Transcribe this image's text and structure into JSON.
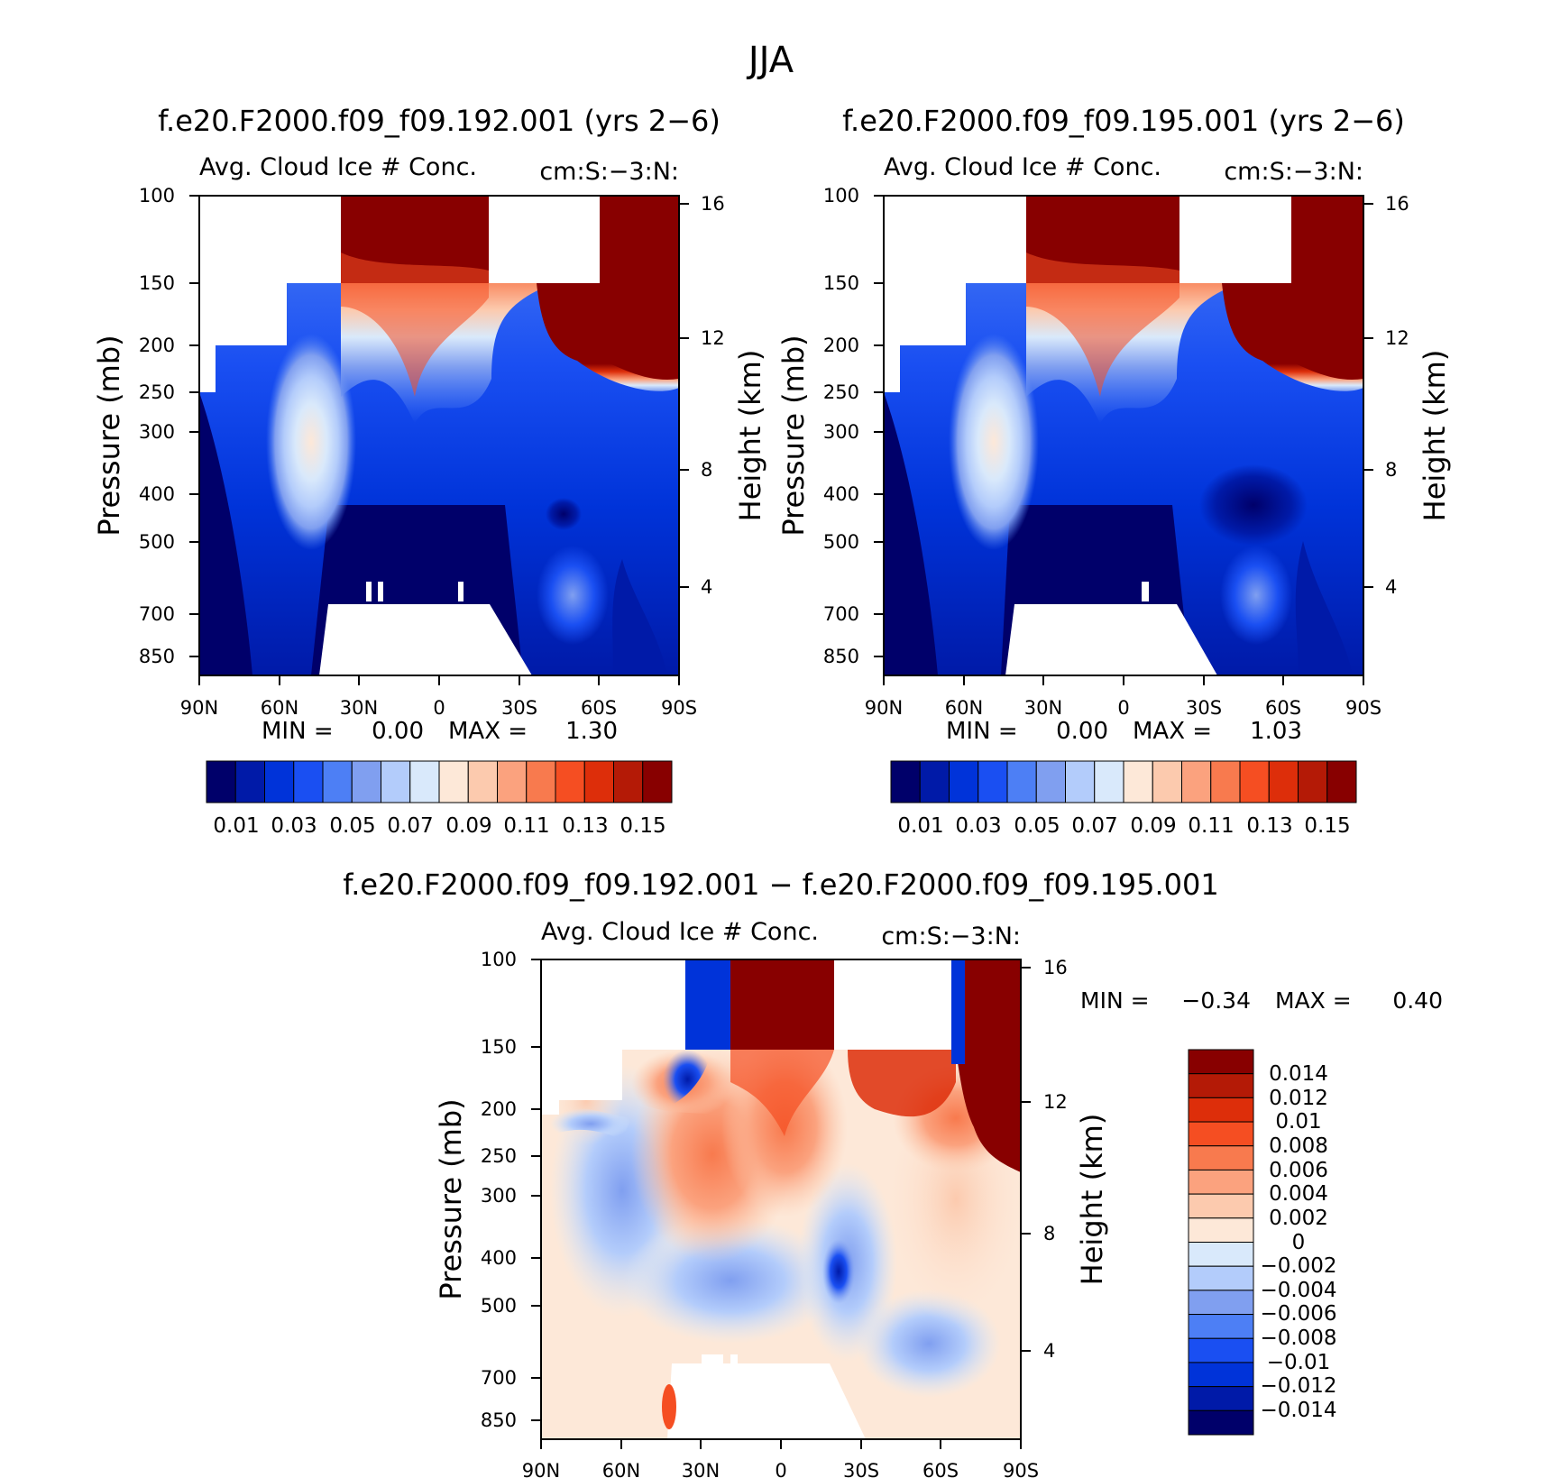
{
  "page_title": "JJA",
  "colors": {
    "land": "#ffffff",
    "frame": "#000000",
    "abs_palette": [
      "#00006a",
      "#001aa8",
      "#0033d9",
      "#1a4ff2",
      "#4d7ff5",
      "#809ff0",
      "#b3ccfb",
      "#d9e9fb",
      "#fde8d8",
      "#fccaae",
      "#fba27e",
      "#f87a4e",
      "#f54e22",
      "#dd2e0a",
      "#b41a06",
      "#880000"
    ],
    "diff_palette": [
      "#00006a",
      "#001aa8",
      "#0033d9",
      "#1a4ff2",
      "#4d7ff5",
      "#809ff0",
      "#b3ccfb",
      "#d9e9fb",
      "#fde8d8",
      "#fccaae",
      "#fba27e",
      "#f87a4e",
      "#f54e22",
      "#dd2e0a",
      "#b41a06",
      "#880000"
    ]
  },
  "chart_data": [
    {
      "type": "heatmap",
      "panel": "left",
      "title": "f.e20.F2000.f09_f09.192.001 (yrs 2-6)",
      "subtitle_left": "Avg. Cloud Ice # Conc.",
      "subtitle_right": "cm:S:-3:N:",
      "ylabel": "Pressure (mb)",
      "ylabel_right": "Height (km)",
      "x_ticks": [
        "90N",
        "60N",
        "30N",
        "0",
        "30S",
        "60S",
        "90S"
      ],
      "y_ticks": [
        "100",
        "150",
        "200",
        "250",
        "300",
        "400",
        "500",
        "700",
        "850"
      ],
      "y_ticks_right": [
        "16",
        "12",
        "8",
        "4"
      ],
      "min_text": "MIN =",
      "min_value": "0.00",
      "max_text": "MAX =",
      "max_value": "1.30",
      "colorbar_labels": [
        "0.01",
        "0.03",
        "0.05",
        "0.07",
        "0.09",
        "0.11",
        "0.13",
        "0.15"
      ],
      "contour_levels": [
        0.01,
        0.02,
        0.03,
        0.04,
        0.05,
        0.06,
        0.07,
        0.08,
        0.09,
        0.1,
        0.11,
        0.12,
        0.13,
        0.14,
        0.15
      ]
    },
    {
      "type": "heatmap",
      "panel": "right",
      "title": "f.e20.F2000.f09_f09.195.001 (yrs 2-6)",
      "subtitle_left": "Avg. Cloud Ice # Conc.",
      "subtitle_right": "cm:S:-3:N:",
      "ylabel": "Pressure (mb)",
      "ylabel_right": "Height (km)",
      "x_ticks": [
        "90N",
        "60N",
        "30N",
        "0",
        "30S",
        "60S",
        "90S"
      ],
      "y_ticks": [
        "100",
        "150",
        "200",
        "250",
        "300",
        "400",
        "500",
        "700",
        "850"
      ],
      "y_ticks_right": [
        "16",
        "12",
        "8",
        "4"
      ],
      "min_text": "MIN =",
      "min_value": "0.00",
      "max_text": "MAX =",
      "max_value": "1.03",
      "colorbar_labels": [
        "0.01",
        "0.03",
        "0.05",
        "0.07",
        "0.09",
        "0.11",
        "0.13",
        "0.15"
      ],
      "contour_levels": [
        0.01,
        0.02,
        0.03,
        0.04,
        0.05,
        0.06,
        0.07,
        0.08,
        0.09,
        0.1,
        0.11,
        0.12,
        0.13,
        0.14,
        0.15
      ]
    },
    {
      "type": "heatmap",
      "panel": "difference",
      "title": "f.e20.F2000.f09_f09.192.001 - f.e20.F2000.f09_f09.195.001",
      "subtitle_left": "Avg. Cloud Ice # Conc.",
      "subtitle_right": "cm:S:-3:N:",
      "ylabel": "Pressure (mb)",
      "ylabel_right": "Height (km)",
      "x_ticks": [
        "90N",
        "60N",
        "30N",
        "0",
        "30S",
        "60S",
        "90S"
      ],
      "y_ticks": [
        "100",
        "150",
        "200",
        "250",
        "300",
        "400",
        "500",
        "700",
        "850"
      ],
      "y_ticks_right": [
        "16",
        "12",
        "8",
        "4"
      ],
      "min_text": "MIN =",
      "min_value": "-0.34",
      "max_text": "MAX =",
      "max_value": "0.40",
      "colorbar_labels": [
        "0.014",
        "0.012",
        "0.01",
        "0.008",
        "0.006",
        "0.004",
        "0.002",
        "0",
        "-0.002",
        "-0.004",
        "-0.006",
        "-0.008",
        "-0.01",
        "-0.012",
        "-0.014"
      ],
      "contour_levels": [
        -0.014,
        -0.012,
        -0.01,
        -0.008,
        -0.006,
        -0.004,
        -0.002,
        0,
        0.002,
        0.004,
        0.006,
        0.008,
        0.01,
        0.012,
        0.014
      ]
    }
  ]
}
